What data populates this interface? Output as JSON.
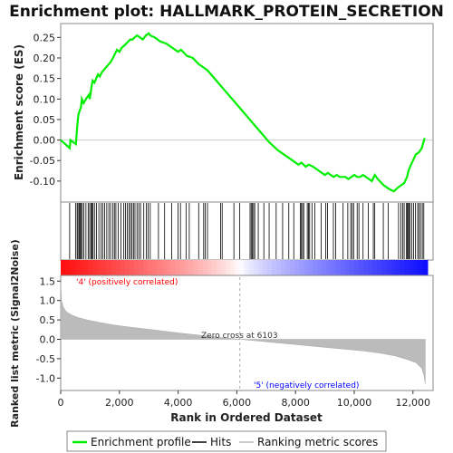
{
  "chart_data": {
    "type": "line",
    "title": "Enrichment plot: HALLMARK_PROTEIN_SECRETION",
    "top_panel": {
      "ylabel": "Enrichment score (ES)",
      "ylim": [
        -0.14,
        0.275
      ],
      "yticks": [
        -0.1,
        -0.05,
        0.0,
        0.05,
        0.1,
        0.15,
        0.2,
        0.25
      ],
      "ytick_labels": [
        "-0.10",
        "-0.05",
        "0.00",
        "0.05",
        "0.10",
        "0.15",
        "0.20",
        "0.25"
      ],
      "series": [
        {
          "name": "Enrichment profile",
          "color": "#00ee00",
          "x": [
            0,
            310,
            330,
            520,
            560,
            600,
            640,
            690,
            720,
            780,
            860,
            960,
            990,
            1050,
            1090,
            1150,
            1210,
            1270,
            1330,
            1400,
            1460,
            1520,
            1580,
            1640,
            1700,
            1780,
            1850,
            1920,
            2000,
            2080,
            2160,
            2230,
            2300,
            2370,
            2450,
            2520,
            2600,
            2700,
            2800,
            2900,
            3000,
            3050,
            3200,
            3400,
            3600,
            3800,
            4000,
            4100,
            4300,
            4500,
            4700,
            4800,
            5000,
            5300,
            5600,
            5900,
            6200,
            6500,
            6800,
            7100,
            7400,
            7700,
            7900,
            8100,
            8200,
            8350,
            8450,
            8600,
            8800,
            9000,
            9100,
            9200,
            9300,
            9400,
            9500,
            9700,
            9800,
            9900,
            10000,
            10100,
            10200,
            10300,
            10400,
            10500,
            10600,
            10700,
            10800,
            11000,
            11200,
            11350,
            11500,
            11600,
            11700,
            11800,
            11850,
            11900,
            12000,
            12100,
            12200,
            12300,
            12380,
            12400
          ],
          "y": [
            0.0,
            -0.02,
            0.0,
            -0.01,
            0.03,
            0.06,
            0.07,
            0.08,
            0.1,
            0.09,
            0.1,
            0.11,
            0.1,
            0.13,
            0.145,
            0.14,
            0.15,
            0.16,
            0.155,
            0.165,
            0.17,
            0.175,
            0.18,
            0.185,
            0.19,
            0.2,
            0.21,
            0.22,
            0.215,
            0.225,
            0.23,
            0.235,
            0.24,
            0.245,
            0.245,
            0.25,
            0.255,
            0.25,
            0.245,
            0.255,
            0.26,
            0.255,
            0.25,
            0.24,
            0.235,
            0.225,
            0.215,
            0.22,
            0.205,
            0.2,
            0.185,
            0.18,
            0.17,
            0.145,
            0.12,
            0.095,
            0.07,
            0.045,
            0.02,
            -0.005,
            -0.025,
            -0.04,
            -0.05,
            -0.06,
            -0.055,
            -0.065,
            -0.06,
            -0.065,
            -0.075,
            -0.085,
            -0.08,
            -0.085,
            -0.09,
            -0.085,
            -0.09,
            -0.09,
            -0.095,
            -0.09,
            -0.085,
            -0.09,
            -0.09,
            -0.085,
            -0.09,
            -0.095,
            -0.1,
            -0.085,
            -0.095,
            -0.11,
            -0.12,
            -0.125,
            -0.115,
            -0.11,
            -0.105,
            -0.09,
            -0.075,
            -0.065,
            -0.05,
            -0.035,
            -0.03,
            -0.02,
            0.0,
            0.005
          ]
        }
      ]
    },
    "hits": [
      305,
      505,
      560,
      590,
      635,
      665,
      700,
      735,
      790,
      860,
      935,
      985,
      1030,
      1065,
      1100,
      1150,
      1220,
      1300,
      1380,
      1430,
      1500,
      1570,
      1640,
      1700,
      1780,
      1830,
      1880,
      1960,
      2050,
      2150,
      2210,
      2270,
      2330,
      2380,
      2430,
      2480,
      2530,
      2600,
      2660,
      2720,
      2830,
      2920,
      2980,
      3050,
      3330,
      3540,
      3780,
      4000,
      4080,
      4270,
      4380,
      4700,
      4870,
      4920,
      5000,
      5450,
      5500,
      5900,
      6100,
      6450,
      6490,
      6530,
      6570,
      6610,
      6730,
      6920,
      7100,
      7340,
      7560,
      7770,
      7940,
      8160,
      8200,
      8240,
      8280,
      8400,
      8440,
      8480,
      8560,
      8660,
      8870,
      9030,
      9090,
      9290,
      9370,
      9620,
      9780,
      9880,
      9930,
      9980,
      10100,
      10160,
      10300,
      10480,
      10650,
      10700,
      10990,
      11160,
      11510,
      11590,
      11650,
      11700,
      11780,
      11800,
      11830,
      11860,
      11900,
      11960,
      12020,
      12080,
      12160,
      12210,
      12260,
      12320,
      12370
    ],
    "heatmap_bar": {
      "description_colors": [
        "#ff0000",
        "#ffffff",
        "#0000ff"
      ]
    },
    "bottom_panel": {
      "ylabel": "Ranked list metric (Signal2Noise)",
      "xlabel": "Rank in Ordered Dataset",
      "ylim": [
        -1.25,
        1.6
      ],
      "yticks": [
        -1.0,
        -0.5,
        0.0,
        0.5,
        1.0,
        1.5
      ],
      "ytick_labels": [
        "-1.0",
        "-0.5",
        "0.0",
        "0.5",
        "1.0",
        "1.5"
      ],
      "xlim": [
        0,
        12500
      ],
      "xticks": [
        0,
        2000,
        4000,
        6000,
        8000,
        10000,
        12000
      ],
      "xtick_labels": [
        "0",
        "2,000",
        "4,000",
        "6,000",
        "8,000",
        "10,000",
        "12,000"
      ],
      "series": [
        {
          "name": "Ranking metric scores",
          "color": "#bbbbbb",
          "x": [
            0,
            30,
            80,
            150,
            250,
            400,
            600,
            900,
            1300,
            1800,
            2400,
            3000,
            3600,
            4200,
            4800,
            5400,
            6103,
            6800,
            7500,
            8200,
            8900,
            9600,
            10300,
            10900,
            11400,
            11800,
            12100,
            12300,
            12380,
            12420
          ],
          "y": [
            1.45,
            1.0,
            0.85,
            0.75,
            0.68,
            0.62,
            0.56,
            0.5,
            0.44,
            0.37,
            0.31,
            0.26,
            0.2,
            0.15,
            0.1,
            0.05,
            0.0,
            -0.05,
            -0.1,
            -0.15,
            -0.2,
            -0.25,
            -0.3,
            -0.36,
            -0.43,
            -0.52,
            -0.6,
            -0.75,
            -0.95,
            -1.15
          ]
        }
      ],
      "annotations": {
        "zero_cross": "Zero cross at 6103",
        "zero_cross_x": 6103,
        "pos_label": "'4' (positively correlated)",
        "neg_label": "'5' (negatively correlated)",
        "pos_color": "#ff0000",
        "neg_color": "#0000ff"
      }
    },
    "legend": {
      "placement": "bottom",
      "items": [
        {
          "label": "Enrichment profile",
          "color": "#00ee00"
        },
        {
          "label": "Hits",
          "color": "#000000"
        },
        {
          "label": "Ranking metric scores",
          "color": "#bbbbbb"
        }
      ]
    }
  }
}
